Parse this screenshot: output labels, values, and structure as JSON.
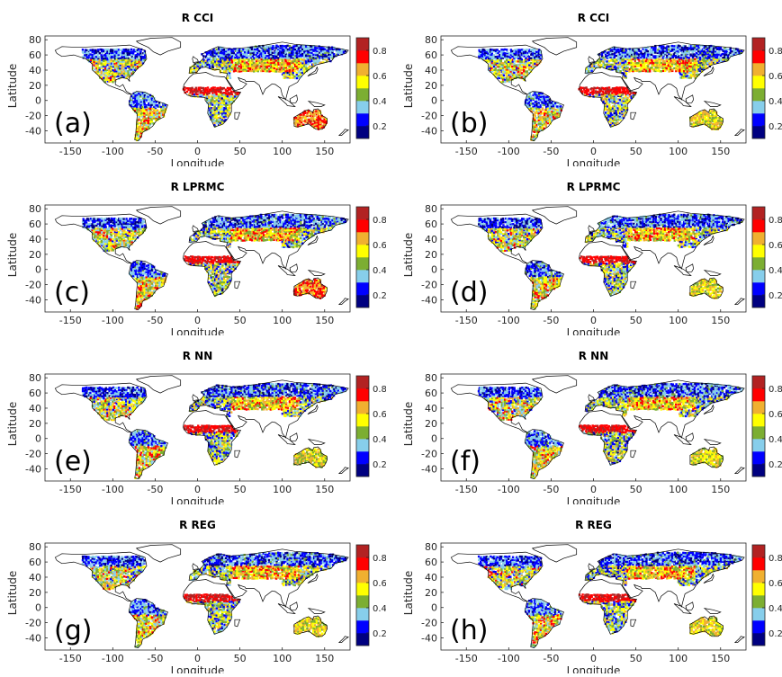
{
  "figure": {
    "panels": [
      {
        "title": "R CCI",
        "letter": "(a)"
      },
      {
        "title": "R CCI",
        "letter": "(b)"
      },
      {
        "title": "R LPRMC",
        "letter": "(c)"
      },
      {
        "title": "R LPRMC",
        "letter": "(d)"
      },
      {
        "title": "R NN",
        "letter": "(e)"
      },
      {
        "title": "R NN",
        "letter": "(f)"
      },
      {
        "title": "R REG",
        "letter": "(g)"
      },
      {
        "title": "R REG",
        "letter": "(h)"
      }
    ],
    "axis": {
      "xlabel": "Longitude",
      "ylabel": "Latitude",
      "xticks": [
        "-150",
        "-100",
        "-50",
        "0",
        "50",
        "100",
        "150"
      ],
      "yticks": [
        "80",
        "60",
        "40",
        "20",
        "0",
        "-20",
        "-40"
      ]
    },
    "colorbar": {
      "ticks": [
        "0.8",
        "0.6",
        "0.4",
        "0.2"
      ],
      "colors": [
        "#000080",
        "#0000ff",
        "#87ceeb",
        "#7cae32",
        "#ffff00",
        "#f0b030",
        "#ff0000",
        "#b22222"
      ]
    }
  }
}
